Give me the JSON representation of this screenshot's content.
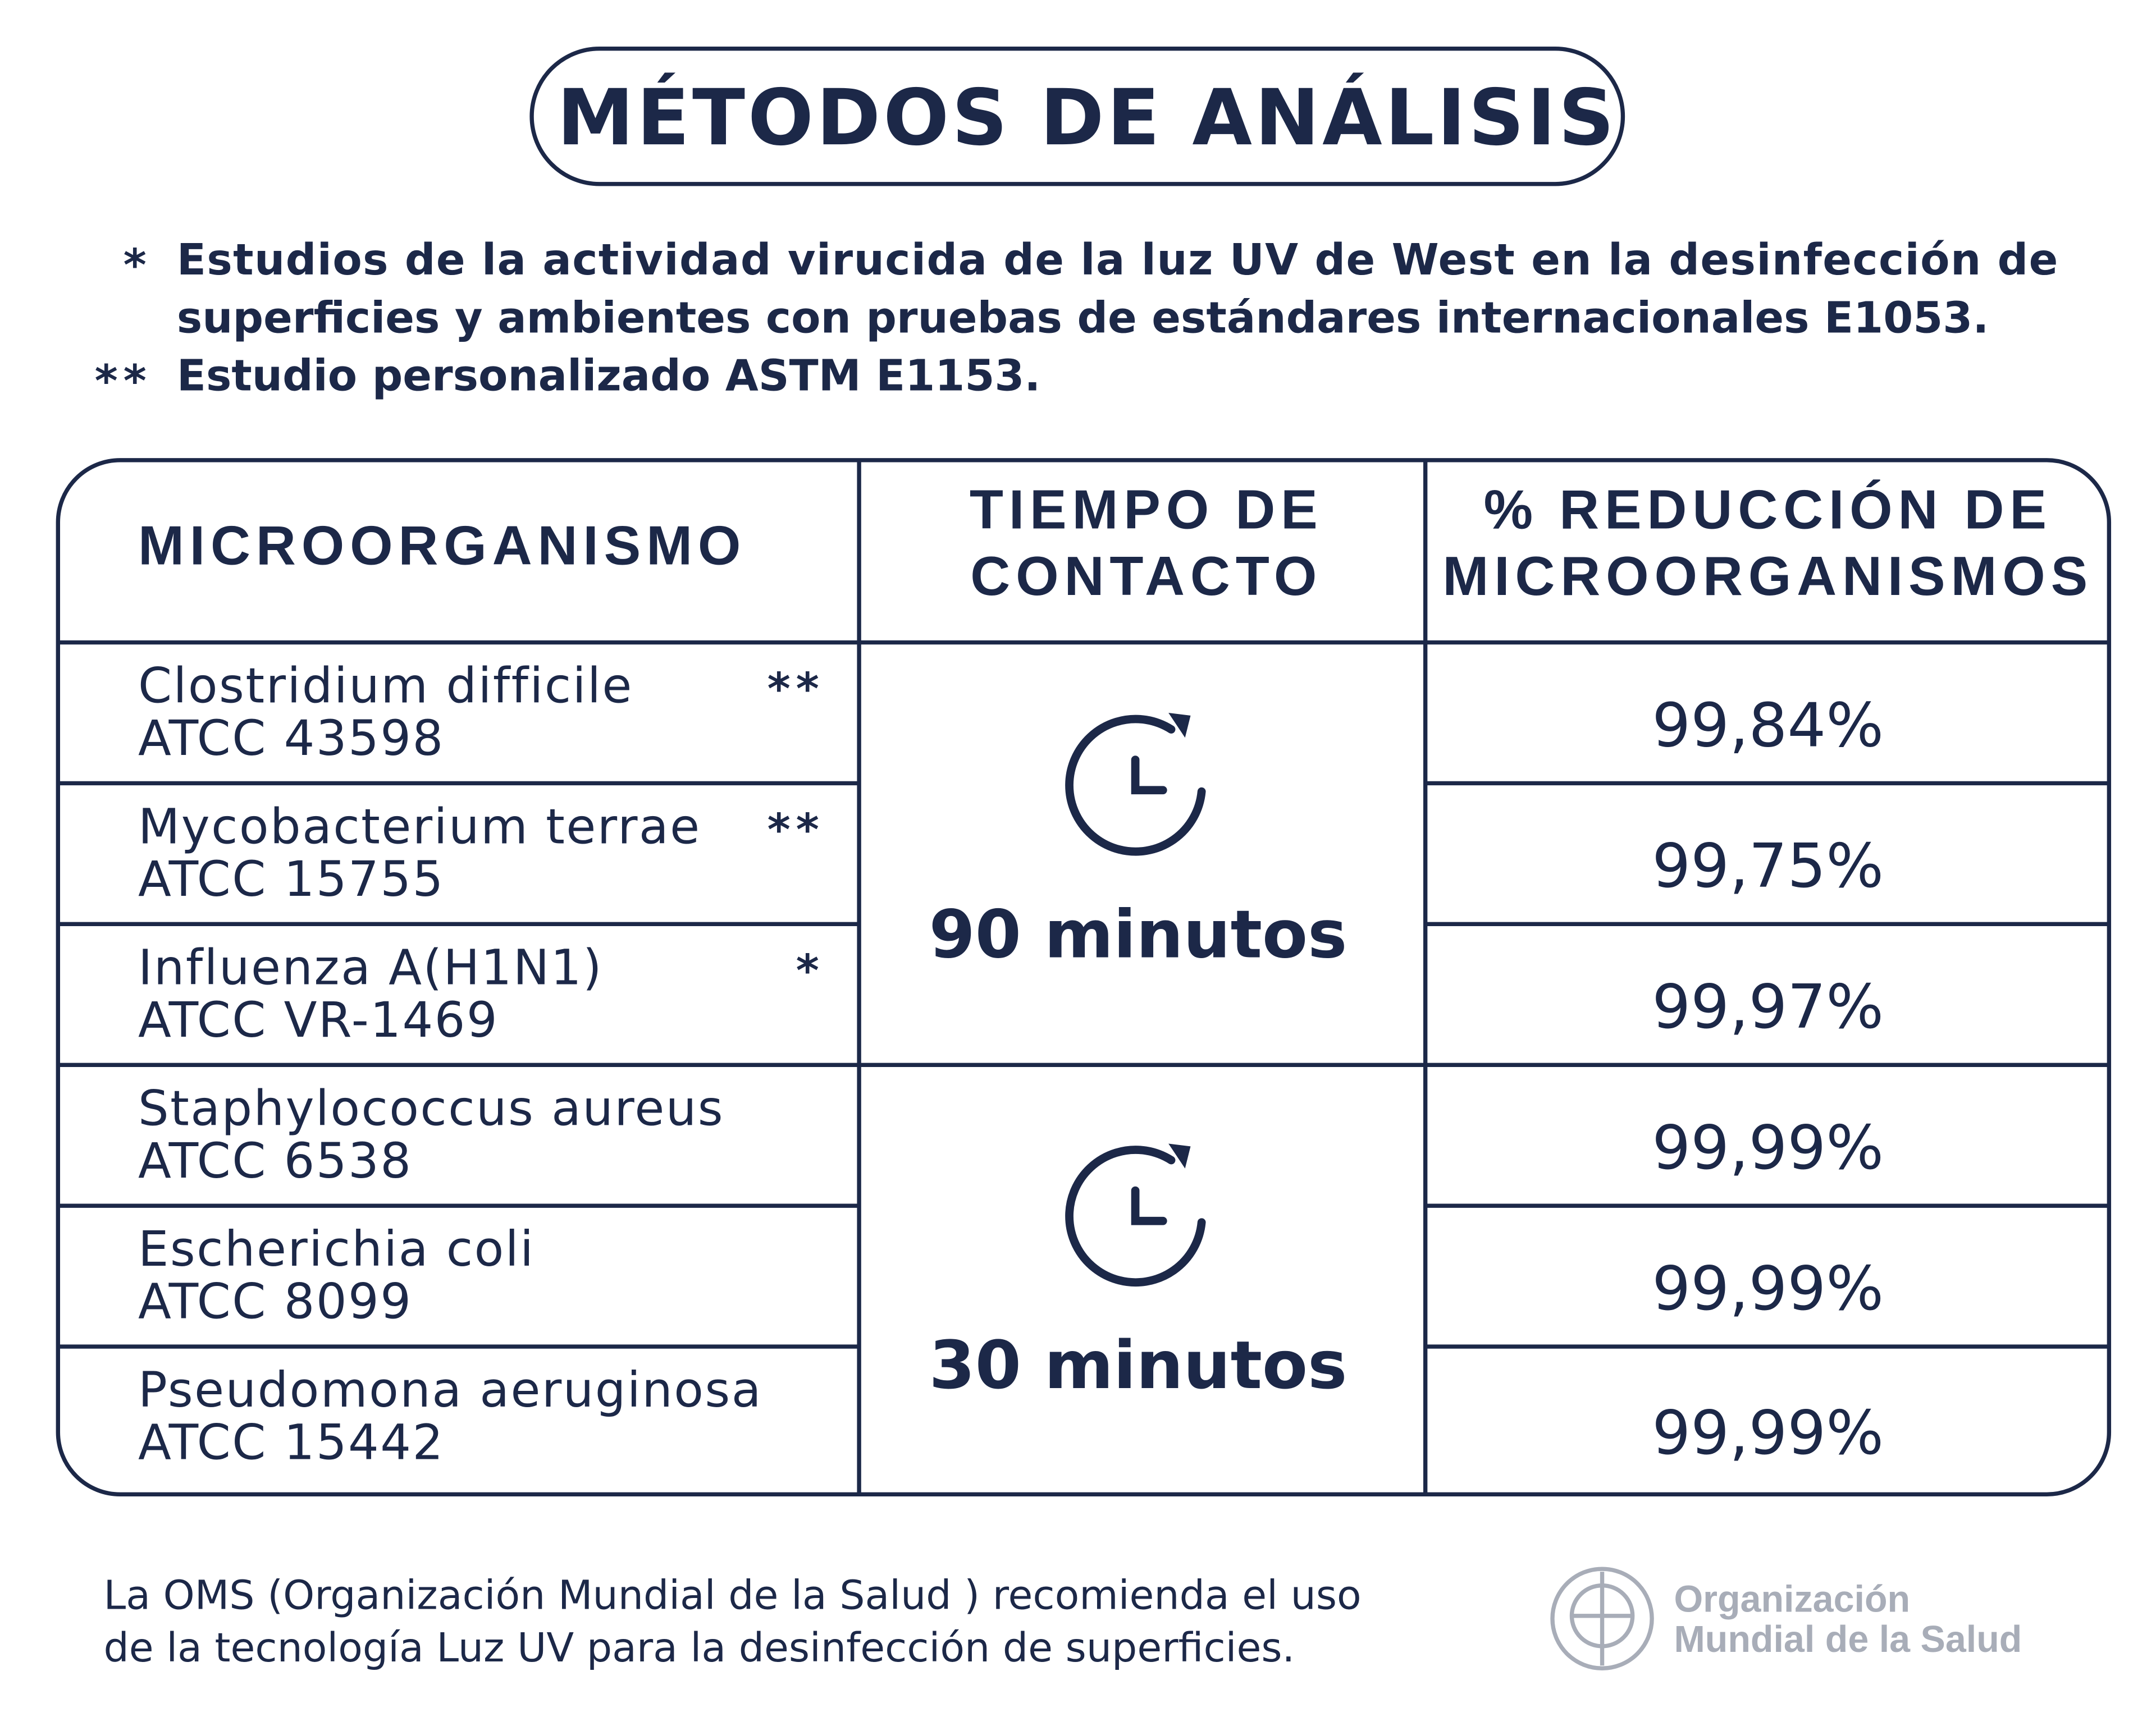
{
  "header": {
    "title": "MÉTODOS DE ANÁLISIS"
  },
  "notes": [
    {
      "marker": "*",
      "lines": [
        "Estudios de la actividad virucida de la luz UV de West en la desinfección de",
        "superficies y ambientes con pruebas de estándares internacionales E1053."
      ]
    },
    {
      "marker": "**",
      "lines": [
        "Estudio personalizado ASTM E1153."
      ]
    }
  ],
  "table": {
    "headers": [
      [
        "MICROORGANISMO"
      ],
      [
        "TIEMPO DE",
        "CONTACTO"
      ],
      [
        "% REDUCCIÓN DE",
        "MICROORGANISMOS"
      ]
    ],
    "rows": [
      {
        "organism": "Clostridium difficile",
        "strain": "ATCC 43598",
        "marker": "**",
        "reduction": "99,84%"
      },
      {
        "organism": "Mycobacterium terrae",
        "strain": "ATCC 15755",
        "marker": "**",
        "reduction": "99,75%"
      },
      {
        "organism": "Influenza A(H1N1)",
        "strain": "ATCC VR-1469",
        "marker": "*",
        "reduction": "99,97%"
      },
      {
        "organism": "Staphylococcus aureus",
        "strain": "ATCC 6538",
        "reduction": "99,99%"
      },
      {
        "organism": "Escherichia coli",
        "strain": "ATCC 8099",
        "reduction": "99,99%"
      },
      {
        "organism": "Pseudomona aeruginosa",
        "strain": "ATCC 15442",
        "reduction": "99,99%"
      }
    ],
    "time_groups": [
      "90 minutos",
      "30 minutos"
    ]
  },
  "footer": {
    "lines": [
      "La OMS (Organización Mundial de la Salud ) recomienda el uso",
      "de la tecnología Luz UV para la desinfección de superficies."
    ],
    "logo": [
      "Organización",
      "Mundial de la Salud"
    ]
  }
}
